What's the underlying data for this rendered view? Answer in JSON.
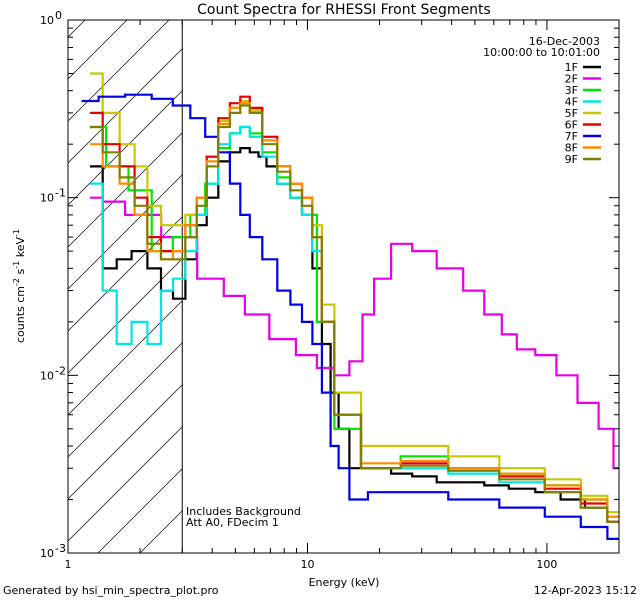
{
  "chart_data": {
    "type": "line",
    "title": "Count Spectra for RHESSI Front Segments",
    "xlabel": "Energy (keV)",
    "ylabel_parts": [
      "counts cm",
      "-2",
      " s",
      "-1",
      " keV",
      "-1"
    ],
    "xscale": "log",
    "yscale": "log",
    "xlim": [
      1,
      200
    ],
    "ylim": [
      0.001,
      1
    ],
    "x_ticks": [
      {
        "v": 1,
        "label": "1"
      },
      {
        "v": 10,
        "label": "10"
      },
      {
        "v": 100,
        "label": "100"
      }
    ],
    "y_ticks": [
      {
        "v": 0.001,
        "label": "10",
        "exp": "-3"
      },
      {
        "v": 0.01,
        "label": "10",
        "exp": "-2"
      },
      {
        "v": 0.1,
        "label": "10",
        "exp": "-1"
      },
      {
        "v": 1,
        "label": "10",
        "exp": "0"
      }
    ],
    "shaded_region_keV": [
      1,
      3
    ],
    "legend_header": [
      "16-Dec-2003",
      "10:00:00 to 10:01:00"
    ],
    "annotations": [
      "Includes Background",
      "Att A0, FDecim 1"
    ],
    "series": [
      {
        "name": "1F",
        "color": "#000000",
        "x": [
          1.3,
          1.5,
          1.7,
          2.0,
          2.3,
          2.6,
          2.9,
          3.3,
          3.6,
          4.0,
          4.5,
          5.0,
          5.5,
          6.0,
          6.5,
          7.0,
          8.0,
          9.0,
          10.0,
          11.0,
          12.0,
          13.0,
          14.0,
          16.0,
          20.0,
          25.0,
          30.0,
          40.0,
          50.0,
          60.0,
          80.0,
          100.0,
          130.0,
          160.0,
          200.0
        ],
        "values": [
          0.15,
          0.04,
          0.045,
          0.05,
          0.04,
          0.03,
          0.027,
          0.045,
          0.07,
          0.1,
          0.16,
          0.18,
          0.19,
          0.18,
          0.17,
          0.15,
          0.12,
          0.1,
          0.08,
          0.04,
          0.015,
          0.008,
          0.005,
          0.003,
          0.003,
          0.0028,
          0.0027,
          0.0025,
          0.0025,
          0.0024,
          0.0023,
          0.0022,
          0.002,
          0.0018,
          0.0015
        ]
      },
      {
        "name": "2F",
        "color": "#e600e6",
        "x": [
          1.3,
          1.5,
          2.0,
          3.0,
          4.0,
          5.0,
          6.0,
          8.0,
          10.0,
          12.0,
          14.0,
          16.0,
          18.0,
          20.0,
          25.0,
          30.0,
          40.0,
          50.0,
          60.0,
          70.0,
          80.0,
          100.0,
          120.0,
          150.0,
          180.0,
          200.0
        ],
        "values": [
          0.1,
          0.095,
          0.08,
          0.06,
          0.035,
          0.028,
          0.022,
          0.016,
          0.013,
          0.011,
          0.01,
          0.012,
          0.022,
          0.035,
          0.055,
          0.05,
          0.04,
          0.03,
          0.022,
          0.017,
          0.014,
          0.013,
          0.01,
          0.007,
          0.005,
          0.003
        ]
      },
      {
        "name": "3F",
        "color": "#00e600",
        "x": [
          1.3,
          1.6,
          2.0,
          2.5,
          3.0,
          3.5,
          4.0,
          4.5,
          5.0,
          5.5,
          6.0,
          7.0,
          8.0,
          9.0,
          10.0,
          12.0,
          14.0,
          20.0,
          30.0,
          50.0,
          80.0,
          120.0,
          160.0,
          200.0
        ],
        "values": [
          0.25,
          0.15,
          0.11,
          0.05,
          0.06,
          0.08,
          0.12,
          0.19,
          0.23,
          0.25,
          0.23,
          0.18,
          0.13,
          0.1,
          0.08,
          0.02,
          0.005,
          0.003,
          0.0035,
          0.003,
          0.0028,
          0.0024,
          0.002,
          0.0016
        ]
      },
      {
        "name": "4F",
        "color": "#00e6e6",
        "x": [
          1.3,
          1.5,
          1.7,
          2.0,
          2.3,
          2.6,
          2.9,
          3.3,
          3.6,
          4.0,
          4.5,
          5.0,
          5.5,
          6.0,
          7.0,
          8.0,
          9.0,
          10.0,
          11.0,
          12.0,
          14.0,
          20.0,
          30.0,
          50.0,
          80.0,
          120.0,
          160.0,
          200.0
        ],
        "values": [
          0.12,
          0.03,
          0.015,
          0.02,
          0.015,
          0.03,
          0.035,
          0.05,
          0.08,
          0.12,
          0.2,
          0.23,
          0.25,
          0.22,
          0.17,
          0.12,
          0.1,
          0.08,
          0.05,
          0.02,
          0.006,
          0.003,
          0.003,
          0.0028,
          0.0025,
          0.0022,
          0.0018,
          0.0015
        ]
      },
      {
        "name": "5F",
        "color": "#c8c800",
        "x": [
          1.3,
          1.5,
          1.8,
          2.0,
          2.3,
          2.6,
          2.9,
          3.3,
          3.6,
          4.0,
          4.5,
          5.0,
          5.5,
          6.0,
          7.0,
          8.0,
          9.0,
          10.0,
          11.0,
          12.0,
          14.0,
          20.0,
          30.0,
          50.0,
          80.0,
          120.0,
          160.0,
          200.0
        ],
        "values": [
          0.5,
          0.3,
          0.2,
          0.15,
          0.09,
          0.07,
          0.07,
          0.08,
          0.1,
          0.17,
          0.27,
          0.32,
          0.35,
          0.31,
          0.22,
          0.15,
          0.12,
          0.1,
          0.07,
          0.025,
          0.008,
          0.004,
          0.004,
          0.0035,
          0.003,
          0.0026,
          0.0021,
          0.0017
        ]
      },
      {
        "name": "6F",
        "color": "#e60000",
        "x": [
          1.3,
          1.5,
          1.8,
          2.0,
          2.3,
          2.6,
          2.9,
          3.3,
          3.6,
          4.0,
          4.5,
          5.0,
          5.5,
          6.0,
          7.0,
          8.0,
          9.0,
          10.0,
          11.0,
          12.0,
          14.0,
          20.0,
          30.0,
          50.0,
          80.0,
          120.0,
          160.0,
          200.0
        ],
        "values": [
          0.3,
          0.2,
          0.15,
          0.1,
          0.06,
          0.05,
          0.05,
          0.07,
          0.1,
          0.17,
          0.28,
          0.34,
          0.37,
          0.32,
          0.22,
          0.15,
          0.12,
          0.1,
          0.06,
          0.02,
          0.006,
          0.003,
          0.0032,
          0.003,
          0.0027,
          0.0023,
          0.0019,
          0.0015
        ]
      },
      {
        "name": "7F",
        "color": "#0000e6",
        "x": [
          1.2,
          1.5,
          2.0,
          2.5,
          3.0,
          3.5,
          4.0,
          4.5,
          5.0,
          5.5,
          6.0,
          7.0,
          8.0,
          9.0,
          10.0,
          11.0,
          12.0,
          13.0,
          14.0,
          16.0,
          20.0,
          30.0,
          50.0,
          80.0,
          120.0,
          160.0,
          200.0
        ],
        "values": [
          0.35,
          0.37,
          0.38,
          0.36,
          0.33,
          0.28,
          0.22,
          0.18,
          0.12,
          0.08,
          0.06,
          0.045,
          0.03,
          0.025,
          0.02,
          0.015,
          0.008,
          0.004,
          0.003,
          0.002,
          0.0022,
          0.0022,
          0.002,
          0.0018,
          0.0016,
          0.0014,
          0.0012
        ]
      },
      {
        "name": "8F",
        "color": "#ff8c00",
        "x": [
          1.3,
          1.5,
          1.8,
          2.0,
          2.3,
          2.6,
          2.9,
          3.3,
          3.6,
          4.0,
          4.5,
          5.0,
          5.5,
          6.0,
          7.0,
          8.0,
          9.0,
          10.0,
          11.0,
          12.0,
          14.0,
          20.0,
          30.0,
          50.0,
          80.0,
          120.0,
          160.0,
          200.0
        ],
        "values": [
          0.2,
          0.15,
          0.12,
          0.08,
          0.05,
          0.045,
          0.05,
          0.07,
          0.1,
          0.16,
          0.26,
          0.32,
          0.34,
          0.3,
          0.21,
          0.15,
          0.12,
          0.1,
          0.06,
          0.02,
          0.006,
          0.0032,
          0.0033,
          0.003,
          0.0028,
          0.0024,
          0.002,
          0.0016
        ]
      },
      {
        "name": "9F",
        "color": "#808000",
        "x": [
          1.3,
          1.5,
          1.8,
          2.0,
          2.3,
          2.6,
          2.9,
          3.3,
          3.6,
          4.0,
          4.5,
          5.0,
          5.5,
          6.0,
          7.0,
          8.0,
          9.0,
          10.0,
          11.0,
          12.0,
          14.0,
          20.0,
          30.0,
          50.0,
          80.0,
          120.0,
          160.0,
          200.0
        ],
        "values": [
          0.25,
          0.18,
          0.13,
          0.09,
          0.055,
          0.045,
          0.045,
          0.06,
          0.09,
          0.15,
          0.25,
          0.3,
          0.33,
          0.3,
          0.2,
          0.14,
          0.11,
          0.09,
          0.06,
          0.02,
          0.006,
          0.003,
          0.0031,
          0.0029,
          0.0026,
          0.0022,
          0.0018,
          0.0015
        ]
      }
    ]
  },
  "footer": {
    "generated": "Generated by hsi_min_spectra_plot.pro",
    "date": "12-Apr-2023 15:12"
  }
}
